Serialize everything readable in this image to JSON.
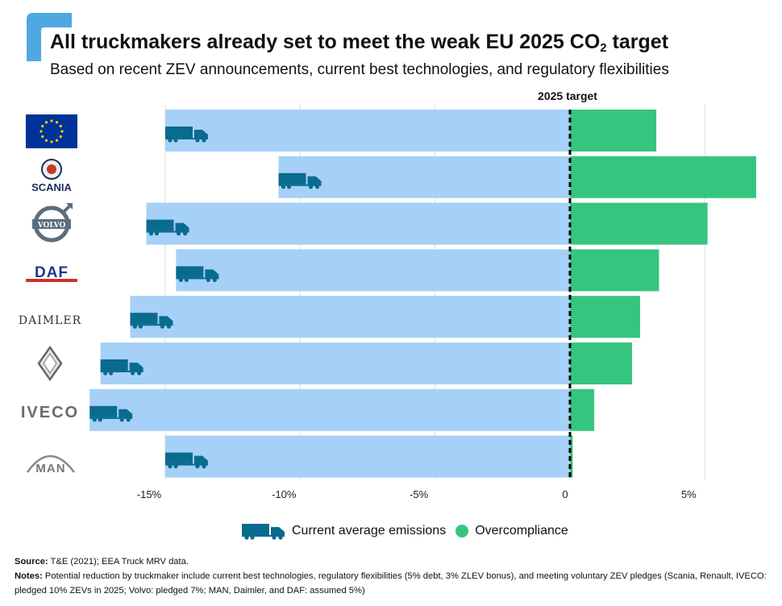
{
  "header": {
    "title_prefix": "All truckmakers already set to meet the weak EU 2025 CO",
    "title_subscript": "2",
    "title_suffix": " target",
    "subtitle": "Based on recent ZEV announcements, current best technologies, and regulatory flexibilities"
  },
  "chart_data": {
    "type": "bar",
    "orientation": "horizontal",
    "categories": [
      "EU",
      "SCANIA",
      "VOLVO",
      "DAF",
      "DAIMLER",
      "RENAULT",
      "IVECO",
      "MAN"
    ],
    "series": [
      {
        "name": "Current average emissions",
        "values": [
          -15.0,
          -10.8,
          -15.7,
          -14.6,
          -16.3,
          -17.4,
          -17.8,
          -15.0
        ]
      },
      {
        "name": "Overcompliance",
        "values": [
          3.2,
          6.9,
          5.1,
          3.3,
          2.6,
          2.3,
          0.9,
          0.1
        ]
      }
    ],
    "target_label": "2025 target",
    "xlim": [
      -18.2,
      7.3
    ],
    "xticks": [
      -15,
      -10,
      -5,
      0,
      5
    ],
    "xtick_labels": [
      "-15%",
      "-10%",
      "-5%",
      "0",
      "5%"
    ],
    "grid": true,
    "legend_position": "bottom-center",
    "colors": {
      "emissions": "#a6d0f7",
      "overcompliance": "#36c57f",
      "truck": "#096b8f",
      "target_line": "#000000",
      "grid": "#dddddd"
    }
  },
  "brands": {
    "scania": "SCANIA",
    "volvo": "VOLVO",
    "daf": "DAF",
    "daimler": "DAIMLER",
    "renault": "RENAULT",
    "iveco": "IVECO",
    "man": "MAN"
  },
  "legend": {
    "emissions_label": "Current average emissions",
    "overcompliance_label": "Overcompliance",
    "truck_icon": "truck-icon"
  },
  "footer": {
    "source_label": "Source:",
    "source_text": " T&E (2021); EEA Truck MRV data.",
    "notes_label": "Notes:",
    "notes_text": " Potential reduction by truckmaker include current best technologies, regulatory flexibilities (5% debt, 3% ZLEV bonus), and meeting voluntary ZEV pledges (Scania, Renault, IVECO: pledged 10% ZEVs in 2025; Volvo: pledged 7%; MAN, Daimler, and DAF: assumed 5%)"
  },
  "accent_color": "#4fa8e0"
}
